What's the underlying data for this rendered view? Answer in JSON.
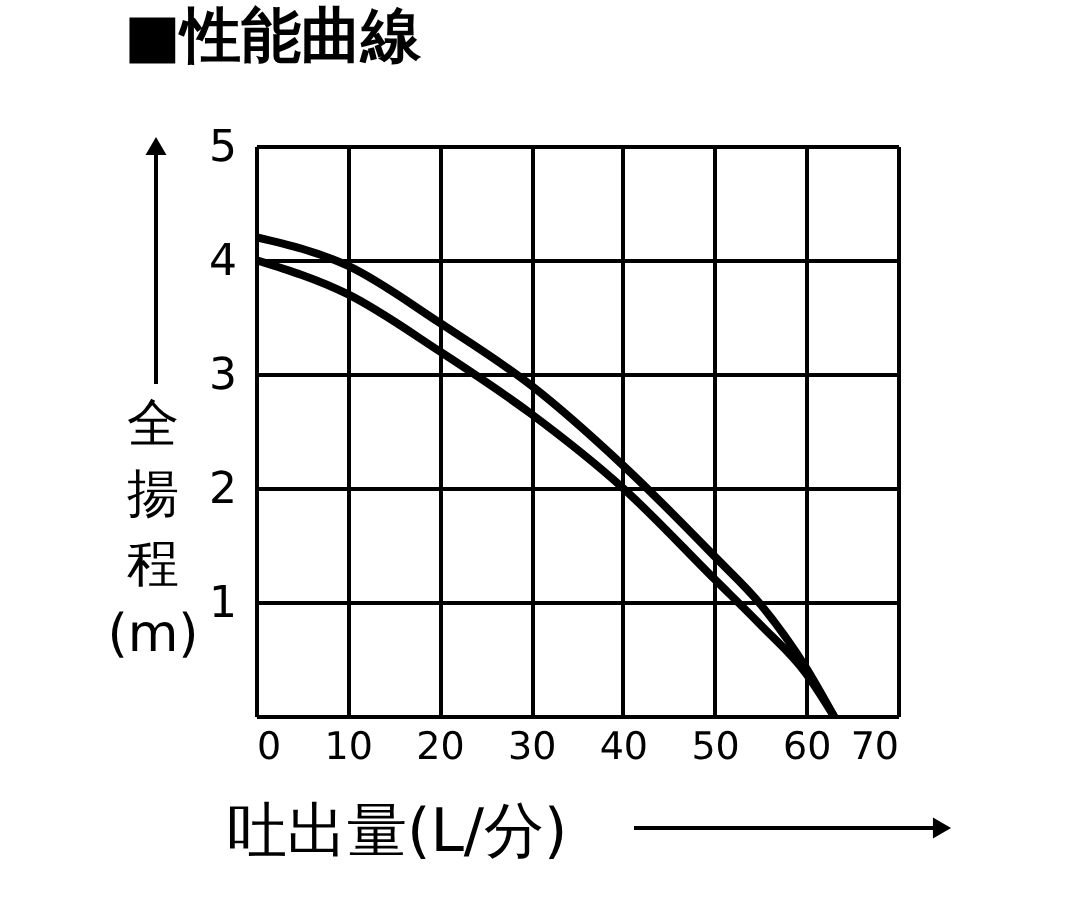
{
  "chart_data": {
    "type": "line",
    "title": "■性能曲線",
    "xlabel": "吐出量(L/分)",
    "ylabel": "全揚程(m)",
    "x": [
      0,
      10,
      20,
      30,
      40,
      50,
      55,
      60,
      63
    ],
    "series": [
      {
        "color": "#000000",
        "values": [
          4.2,
          3.95,
          3.45,
          2.9,
          2.2,
          1.4,
          0.98,
          0.42,
          0
        ]
      },
      {
        "color": "#000000",
        "values": [
          4.0,
          3.7,
          3.2,
          2.65,
          2.0,
          1.2,
          0.8,
          0.37,
          0
        ]
      }
    ],
    "xlim": [
      0,
      70
    ],
    "ylim": [
      0,
      5
    ],
    "xticks": [
      0,
      10,
      20,
      30,
      40,
      50,
      60,
      70
    ],
    "yticks": [
      {
        "value": 0,
        "label": null
      },
      1,
      2,
      3,
      4,
      5
    ],
    "grid": true,
    "marker": "none",
    "line_style": "solid"
  }
}
